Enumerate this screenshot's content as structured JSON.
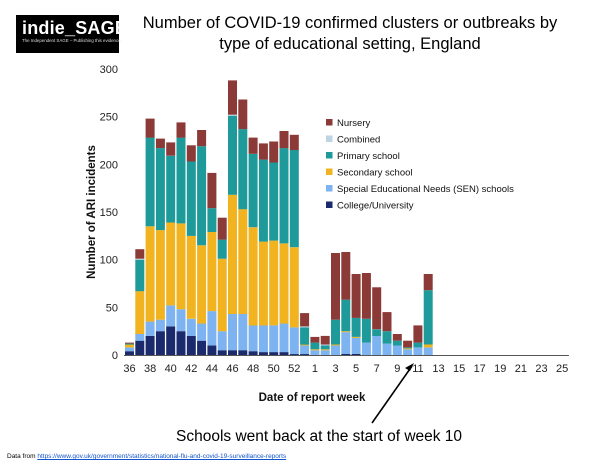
{
  "logo": {
    "name": "indie_SAGE",
    "tagline": "The Independent SAGE – Publishing this evidence"
  },
  "title": "Number of COVID-19 confirmed clusters or outbreaks by type of educational setting, England",
  "annotation": "Schools went back at the start of week 10",
  "source": {
    "prefix": "Data from ",
    "url": "https://www.gov.uk/government/statistics/national-flu-and-covid-19-surveillance-reports"
  },
  "colors": {
    "Nursery": "#8b3a37",
    "Combined": "#bcd4e3",
    "Primary school": "#1f9a9a",
    "Secondary school": "#f1b320",
    "Special Educational Needs (SEN) schools": "#7cb3f0",
    "College/University": "#1a2a6c",
    "arrow": "#000000"
  },
  "chart_data": {
    "type": "bar",
    "stacked": true,
    "title": "Number of COVID-19 confirmed clusters or outbreaks by type of educational setting, England",
    "xlabel": "Date of report week",
    "ylabel": "Number of ARI incidents",
    "ylim": [
      0,
      300
    ],
    "yticks": [
      "0",
      "50",
      "100",
      "150",
      "200",
      "250",
      "300"
    ],
    "xtick_labels": [
      "36",
      "38",
      "40",
      "42",
      "44",
      "46",
      "48",
      "50",
      "52",
      "1",
      "3",
      "5",
      "7",
      "9",
      "11",
      "13",
      "15",
      "17",
      "19",
      "21",
      "23",
      "25"
    ],
    "categories": [
      "36",
      "37",
      "38",
      "39",
      "40",
      "41",
      "42",
      "43",
      "44",
      "45",
      "46",
      "47",
      "48",
      "49",
      "50",
      "51",
      "52",
      "53",
      "1",
      "2",
      "3",
      "4",
      "5",
      "6",
      "7",
      "8",
      "9",
      "10",
      "11",
      "12",
      "13",
      "14",
      "15",
      "16",
      "17",
      "18",
      "19",
      "20",
      "21",
      "22",
      "23",
      "24",
      "25"
    ],
    "legend_position": "right",
    "series": [
      {
        "name": "College/University",
        "values": [
          4,
          15,
          20,
          25,
          30,
          25,
          20,
          15,
          10,
          5,
          5,
          5,
          4,
          3,
          3,
          3,
          1,
          1,
          0,
          0,
          0,
          1,
          1,
          0,
          0,
          0,
          0,
          0,
          0,
          0,
          0,
          0,
          0,
          0,
          0,
          0,
          0,
          0,
          0,
          0,
          0,
          0,
          0
        ]
      },
      {
        "name": "Special Educational Needs (SEN) schools",
        "values": [
          4,
          7,
          15,
          12,
          22,
          23,
          18,
          18,
          36,
          20,
          38,
          38,
          27,
          28,
          28,
          30,
          28,
          9,
          5,
          5,
          10,
          23,
          17,
          13,
          20,
          12,
          10,
          6,
          8,
          8,
          0,
          0,
          0,
          0,
          0,
          0,
          0,
          0,
          0,
          0,
          0,
          0,
          0
        ]
      },
      {
        "name": "Secondary school",
        "values": [
          3,
          45,
          100,
          94,
          87,
          90,
          87,
          82,
          83,
          76,
          125,
          110,
          103,
          88,
          89,
          84,
          84,
          1,
          1,
          1,
          1,
          1,
          1,
          0,
          0,
          0,
          0,
          1,
          0,
          3,
          0,
          0,
          0,
          0,
          0,
          0,
          0,
          0,
          0,
          0,
          0,
          0,
          0
        ]
      },
      {
        "name": "Primary school",
        "values": [
          1,
          33,
          93,
          86,
          70,
          90,
          78,
          104,
          25,
          20,
          83,
          84,
          77,
          86,
          82,
          100,
          102,
          18,
          7,
          4,
          26,
          33,
          20,
          25,
          7,
          13,
          5,
          1,
          5,
          57,
          0,
          0,
          0,
          0,
          0,
          0,
          0,
          0,
          0,
          0,
          0,
          0,
          0
        ]
      },
      {
        "name": "Combined",
        "values": [
          0,
          1,
          0,
          0,
          0,
          0,
          0,
          0,
          0,
          0,
          1,
          0,
          0,
          0,
          0,
          0,
          0,
          1,
          0,
          1,
          0,
          0,
          0,
          0,
          0,
          0,
          0,
          0,
          0,
          0,
          0,
          0,
          0,
          0,
          0,
          0,
          0,
          0,
          0,
          0,
          0,
          0,
          0
        ]
      },
      {
        "name": "Nursery",
        "values": [
          1,
          10,
          20,
          10,
          14,
          16,
          17,
          17,
          37,
          23,
          36,
          31,
          17,
          17,
          22,
          18,
          16,
          14,
          6,
          9,
          70,
          50,
          46,
          48,
          44,
          20,
          7,
          7,
          18,
          17,
          0,
          0,
          0,
          0,
          0,
          0,
          0,
          0,
          0,
          0,
          0,
          0,
          0
        ]
      }
    ]
  }
}
